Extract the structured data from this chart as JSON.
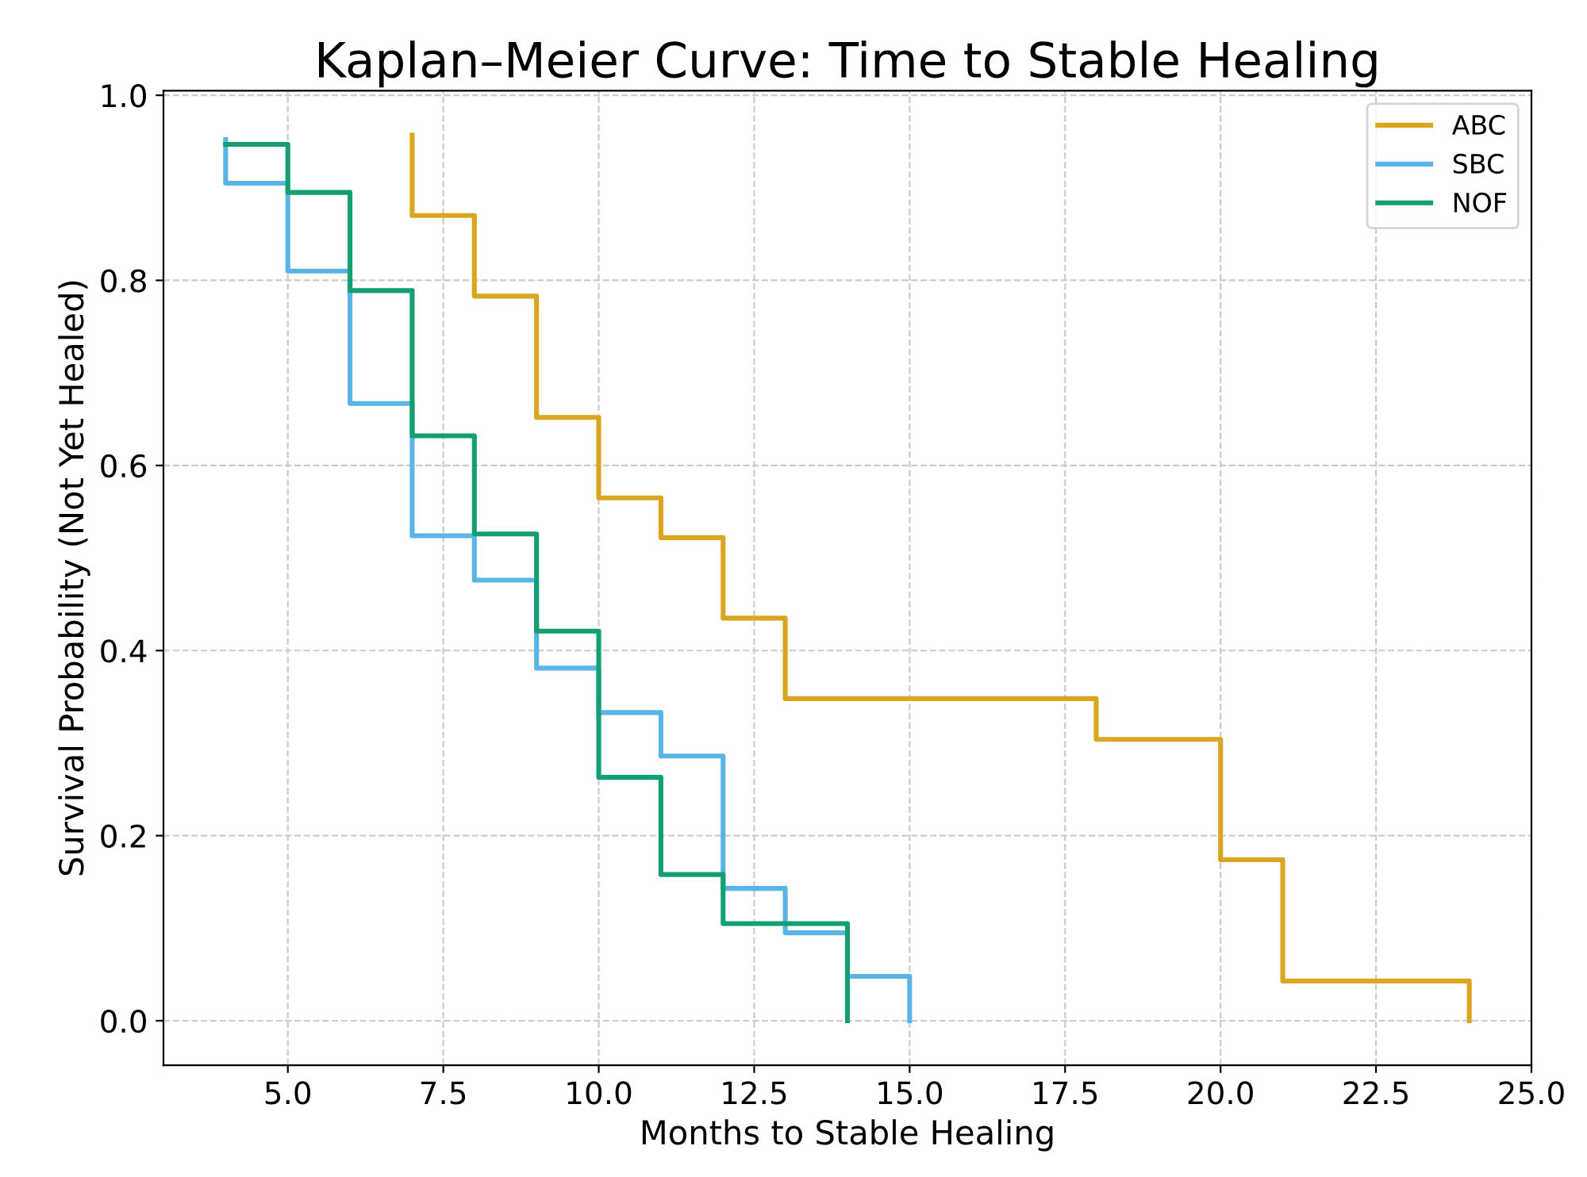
{
  "chart_data": {
    "type": "step",
    "title": "Kaplan–Meier Curve: Time to Stable Healing",
    "xlabel": "Months to Stable Healing",
    "ylabel": "Survival Probability (Not Yet Healed)",
    "series": [
      {
        "name": "ABC",
        "color": "#daa520",
        "x": [
          7,
          7,
          8,
          9,
          10,
          11,
          12,
          13,
          18,
          20,
          21,
          24
        ],
        "values": [
          0.957,
          0.87,
          0.783,
          0.652,
          0.565,
          0.522,
          0.435,
          0.348,
          0.304,
          0.174,
          0.043,
          0
        ]
      },
      {
        "name": "SBC",
        "color": "#5ab4e5",
        "x": [
          4,
          4,
          5,
          6,
          7,
          8,
          9,
          10,
          11,
          12,
          13,
          14,
          15
        ],
        "values": [
          0.952,
          0.905,
          0.81,
          0.667,
          0.524,
          0.476,
          0.381,
          0.333,
          0.286,
          0.143,
          0.095,
          0.048,
          0
        ]
      },
      {
        "name": "NOF",
        "color": "#139e74",
        "x": [
          4,
          5,
          6,
          7,
          8,
          9,
          10,
          11,
          12,
          14
        ],
        "values": [
          0.947,
          0.895,
          0.789,
          0.632,
          0.526,
          0.421,
          0.263,
          0.158,
          0.105,
          0
        ]
      }
    ],
    "xlim": [
      3.0,
      25.0
    ],
    "ylim": [
      -0.048,
      1.005
    ],
    "xticks": [
      {
        "value": 5,
        "label": "5.0"
      },
      {
        "value": 7.5,
        "label": "7.5"
      },
      {
        "value": 10,
        "label": "10.0"
      },
      {
        "value": 12.5,
        "label": "12.5"
      },
      {
        "value": 15,
        "label": "15.0"
      },
      {
        "value": 17.5,
        "label": "17.5"
      },
      {
        "value": 20,
        "label": "20.0"
      },
      {
        "value": 22.5,
        "label": "22.5"
      },
      {
        "value": 25,
        "label": "25.0"
      }
    ],
    "yticks": [
      {
        "value": 0,
        "label": "0.0"
      },
      {
        "value": 0.2,
        "label": "0.2"
      },
      {
        "value": 0.4,
        "label": "0.4"
      },
      {
        "value": 0.6,
        "label": "0.6"
      },
      {
        "value": 0.8,
        "label": "0.8"
      },
      {
        "value": 1.0,
        "label": "1.0"
      }
    ],
    "grid": true,
    "legend": "top right",
    "line_style": "solid"
  }
}
